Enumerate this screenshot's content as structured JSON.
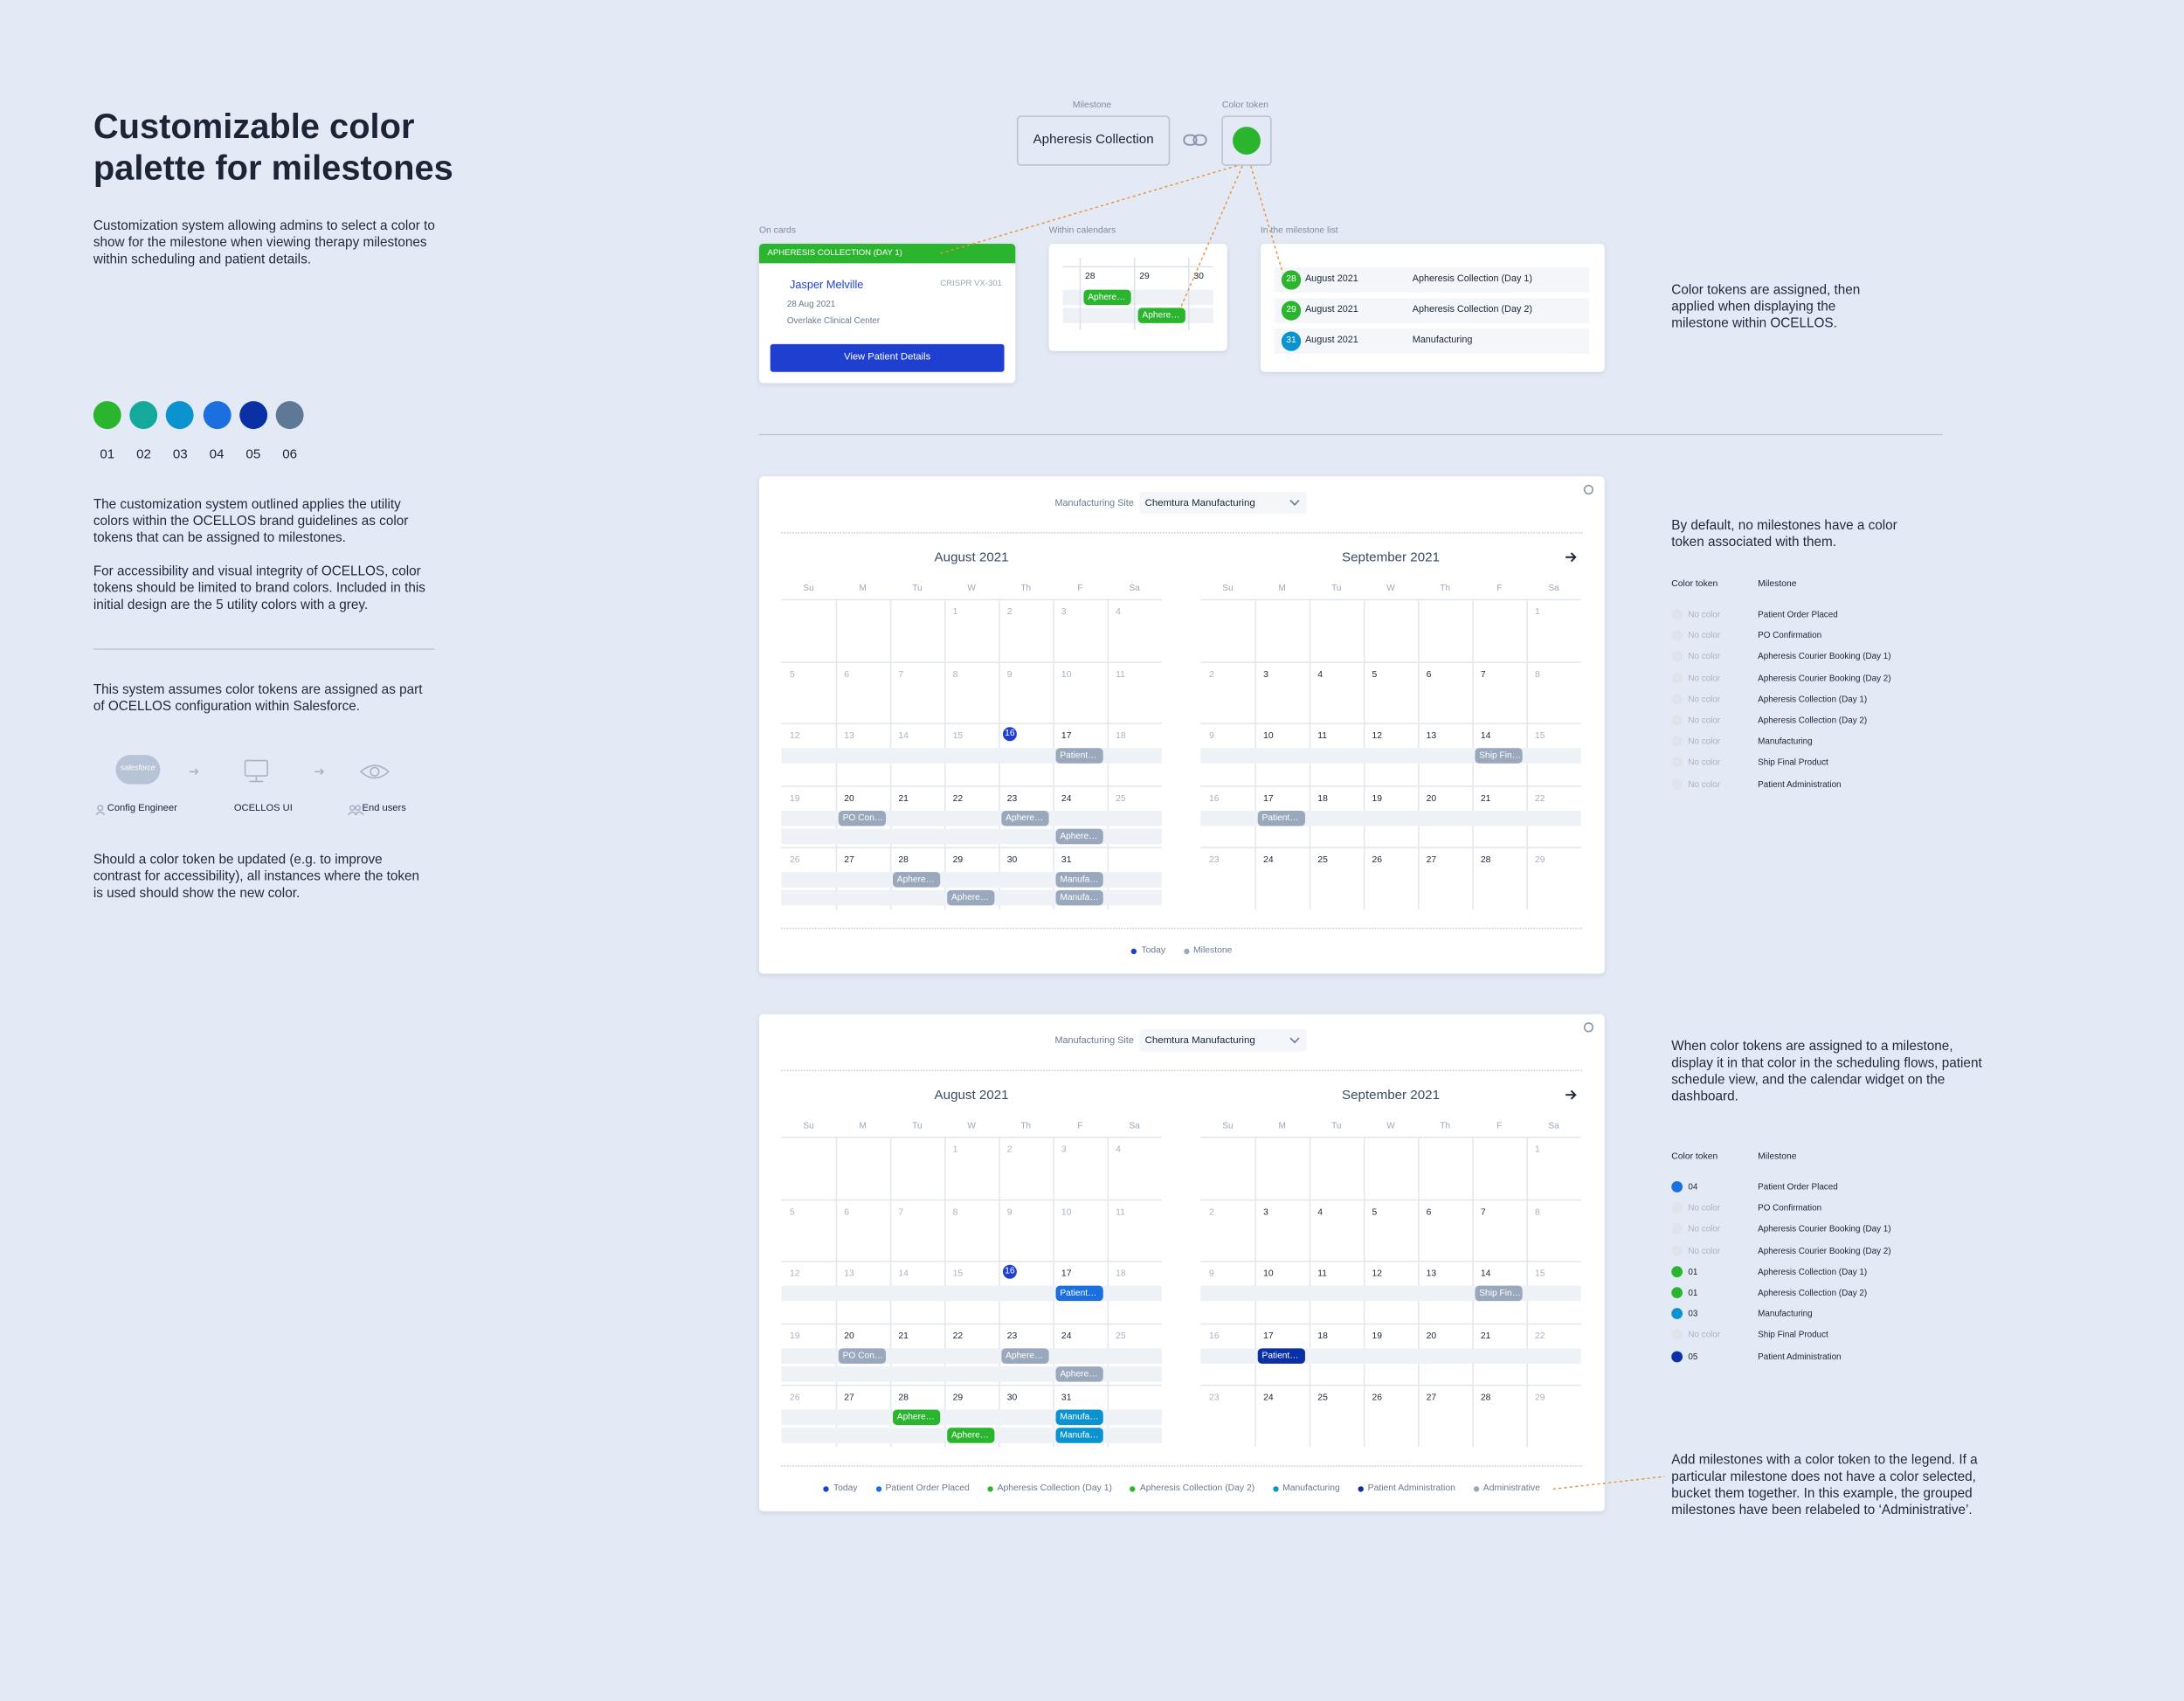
{
  "header": {
    "title": "Customizable color palette for milestones",
    "description": "Customization system allowing admins to select a color to show for the milestone when viewing therapy milestones within scheduling and patient details."
  },
  "palette": [
    {
      "label": "01",
      "color": "#2bb52f"
    },
    {
      "label": "02",
      "color": "#14a99a"
    },
    {
      "label": "03",
      "color": "#0a93cf"
    },
    {
      "label": "04",
      "color": "#1b6fdf"
    },
    {
      "label": "05",
      "color": "#0b30a6"
    },
    {
      "label": "06",
      "color": "#5e7896"
    }
  ],
  "guidelines": [
    "The customization system outlined applies the utility colors within the OCELLOS brand guidelines as color tokens that can be assigned to milestones.",
    "For accessibility and visual integrity of OCELLOS, color tokens should be limited to brand colors. Included in this initial design are the 5 utility colors with a grey."
  ],
  "configuration": {
    "intro": "This system assumes color tokens are assigned as part of OCELLOS configuration within Salesforce.",
    "logo": "salesforce",
    "steps": [
      "Config Engineer",
      "OCELLOS UI",
      "End users"
    ],
    "closing": "Should a color token be updated (e.g. to improve contrast for accessibility), all instances where the token is used should show the new color."
  },
  "token_demo": {
    "milestone_label": "Milestone",
    "milestone": "Apheresis Collection",
    "token_label": "Color token",
    "token_color": "#2bb52f"
  },
  "usage": {
    "card": {
      "label": "On cards",
      "header": "APHERESIS COLLECTION (DAY 1)",
      "patient": "Jasper Melville",
      "therapy": "CRISPR VX-301",
      "date": "28 Aug 2021",
      "site": "Overlake Clinical Center",
      "button": "View Patient Details"
    },
    "calendar": {
      "label": "Within calendars",
      "days": [
        28,
        29,
        30
      ],
      "events": [
        {
          "label": "Aphere…",
          "color": "#2bb52f"
        },
        {
          "label": "Aphere…",
          "color": "#2bb52f"
        }
      ]
    },
    "list": {
      "label": "In the milestone list",
      "rows": [
        {
          "day": 28,
          "color": "#2bb52f",
          "month": "August 2021",
          "milestone": "Apheresis Collection (Day 1)"
        },
        {
          "day": 29,
          "color": "#2bb52f",
          "month": "August 2021",
          "milestone": "Apheresis Collection (Day 2)"
        },
        {
          "day": 31,
          "color": "#0a93cf",
          "month": "August 2021",
          "milestone": "Manufacturing"
        }
      ]
    },
    "note": "Color tokens are assigned, then applied when displaying the milestone within OCELLOS."
  },
  "calendar_common": {
    "site_label": "Manufacturing Site",
    "site": "Chemtura Manufacturing",
    "weekdays": [
      "Su",
      "M",
      "Tu",
      "W",
      "Th",
      "F",
      "Sa"
    ],
    "months": [
      {
        "title": "August 2021",
        "today": 16,
        "weeks": [
          [
            null,
            null,
            null,
            1,
            2,
            3,
            4
          ],
          [
            5,
            6,
            7,
            8,
            9,
            10,
            11
          ],
          [
            12,
            13,
            14,
            15,
            16,
            17,
            18
          ],
          [
            19,
            20,
            21,
            22,
            23,
            24,
            25
          ],
          [
            26,
            27,
            28,
            29,
            30,
            31,
            null
          ]
        ]
      },
      {
        "title": "September 2021",
        "weeks": [
          [
            null,
            null,
            null,
            null,
            null,
            null,
            1
          ],
          [
            2,
            3,
            4,
            5,
            6,
            7,
            8
          ],
          [
            9,
            10,
            11,
            12,
            13,
            14,
            15
          ],
          [
            16,
            17,
            18,
            19,
            20,
            21,
            22
          ],
          [
            23,
            24,
            25,
            26,
            27,
            28,
            29
          ]
        ]
      }
    ]
  },
  "calendars": [
    {
      "events": [
        {
          "month": 0,
          "date": 17,
          "slot": 0,
          "label": "Patient…",
          "color": "#9aa8bd"
        },
        {
          "month": 0,
          "date": 20,
          "slot": 0,
          "label": "PO Con…",
          "color": "#9aa8bd"
        },
        {
          "month": 0,
          "date": 23,
          "slot": 0,
          "label": "Aphere…",
          "color": "#9aa8bd"
        },
        {
          "month": 0,
          "date": 24,
          "slot": 1,
          "label": "Aphere…",
          "color": "#9aa8bd"
        },
        {
          "month": 0,
          "date": 28,
          "slot": 0,
          "label": "Aphere…",
          "color": "#9aa8bd"
        },
        {
          "month": 0,
          "date": 29,
          "slot": 1,
          "label": "Aphere…",
          "color": "#9aa8bd"
        },
        {
          "month": 0,
          "date": 31,
          "slot": 0,
          "label": "Manufa…",
          "color": "#9aa8bd"
        },
        {
          "month": 0,
          "date": 31,
          "slot": 1,
          "label": "Manufa…",
          "color": "#9aa8bd"
        },
        {
          "month": 1,
          "date": 14,
          "slot": 0,
          "label": "Ship Fin…",
          "color": "#9aa8bd"
        },
        {
          "month": 1,
          "date": 17,
          "slot": 0,
          "label": "Patient…",
          "color": "#9aa8bd"
        }
      ],
      "legend": [
        {
          "label": "Today",
          "color": "#1f3fd1"
        },
        {
          "label": "Milestone",
          "color": "#9aa8bd"
        }
      ],
      "note": "By default, no milestones have a color token associated with them.",
      "table": {
        "headers": [
          "Color token",
          "Milestone"
        ],
        "rows": [
          {
            "token": "No color",
            "color": "#dfe4ec",
            "milestone": "Patient Order Placed"
          },
          {
            "token": "No color",
            "color": "#dfe4ec",
            "milestone": "PO Confirmation"
          },
          {
            "token": "No color",
            "color": "#dfe4ec",
            "milestone": "Apheresis Courier Booking (Day 1)"
          },
          {
            "token": "No color",
            "color": "#dfe4ec",
            "milestone": "Apheresis Courier Booking (Day 2)"
          },
          {
            "token": "No color",
            "color": "#dfe4ec",
            "milestone": "Apheresis Collection (Day 1)"
          },
          {
            "token": "No color",
            "color": "#dfe4ec",
            "milestone": "Apheresis Collection (Day 2)"
          },
          {
            "token": "No color",
            "color": "#dfe4ec",
            "milestone": "Manufacturing"
          },
          {
            "token": "No color",
            "color": "#dfe4ec",
            "milestone": "Ship Final Product"
          },
          {
            "token": "No color",
            "color": "#dfe4ec",
            "milestone": "Patient Administration"
          }
        ]
      }
    },
    {
      "events": [
        {
          "month": 0,
          "date": 17,
          "slot": 0,
          "label": "Patient…",
          "color": "#1b6fdf"
        },
        {
          "month": 0,
          "date": 20,
          "slot": 0,
          "label": "PO Con…",
          "color": "#9aa8bd"
        },
        {
          "month": 0,
          "date": 23,
          "slot": 0,
          "label": "Aphere…",
          "color": "#9aa8bd"
        },
        {
          "month": 0,
          "date": 24,
          "slot": 1,
          "label": "Aphere…",
          "color": "#9aa8bd"
        },
        {
          "month": 0,
          "date": 28,
          "slot": 0,
          "label": "Aphere…",
          "color": "#2bb52f"
        },
        {
          "month": 0,
          "date": 29,
          "slot": 1,
          "label": "Aphere…",
          "color": "#2bb52f"
        },
        {
          "month": 0,
          "date": 31,
          "slot": 0,
          "label": "Manufa…",
          "color": "#0a93cf"
        },
        {
          "month": 0,
          "date": 31,
          "slot": 1,
          "label": "Manufa…",
          "color": "#0a93cf"
        },
        {
          "month": 1,
          "date": 14,
          "slot": 0,
          "label": "Ship Fin…",
          "color": "#9aa8bd"
        },
        {
          "month": 1,
          "date": 17,
          "slot": 0,
          "label": "Patient…",
          "color": "#0b30a6"
        }
      ],
      "legend": [
        {
          "label": "Today",
          "color": "#1f3fd1"
        },
        {
          "label": "Patient Order Placed",
          "color": "#1b6fdf"
        },
        {
          "label": "Apheresis Collection (Day 1)",
          "color": "#2bb52f"
        },
        {
          "label": "Apheresis Collection (Day 2)",
          "color": "#2bb52f"
        },
        {
          "label": "Manufacturing",
          "color": "#0a93cf"
        },
        {
          "label": "Patient Administration",
          "color": "#0b30a6"
        },
        {
          "label": "Administrative",
          "color": "#9aa8bd"
        }
      ],
      "note": "When color tokens are assigned to a milestone, display it in that color in the scheduling flows, patient schedule view, and the calendar widget on the dashboard.",
      "legend_note": "Add milestones with a color token to the legend. If a particular milestone does not have a color selected, bucket them together. In this example, the grouped milestones have been relabeled to ‘Administrative’.",
      "table": {
        "headers": [
          "Color token",
          "Milestone"
        ],
        "rows": [
          {
            "token": "04",
            "color": "#1b6fdf",
            "milestone": "Patient Order Placed"
          },
          {
            "token": "No color",
            "color": "#dfe4ec",
            "milestone": "PO Confirmation"
          },
          {
            "token": "No color",
            "color": "#dfe4ec",
            "milestone": "Apheresis Courier Booking (Day 1)"
          },
          {
            "token": "No color",
            "color": "#dfe4ec",
            "milestone": "Apheresis Courier Booking (Day 2)"
          },
          {
            "token": "01",
            "color": "#2bb52f",
            "milestone": "Apheresis Collection (Day 1)"
          },
          {
            "token": "01",
            "color": "#2bb52f",
            "milestone": "Apheresis Collection (Day 2)"
          },
          {
            "token": "03",
            "color": "#0a93cf",
            "milestone": "Manufacturing"
          },
          {
            "token": "No color",
            "color": "#dfe4ec",
            "milestone": "Ship Final Product"
          },
          {
            "token": "05",
            "color": "#0b30a6",
            "milestone": "Patient Administration"
          }
        ]
      }
    }
  ]
}
